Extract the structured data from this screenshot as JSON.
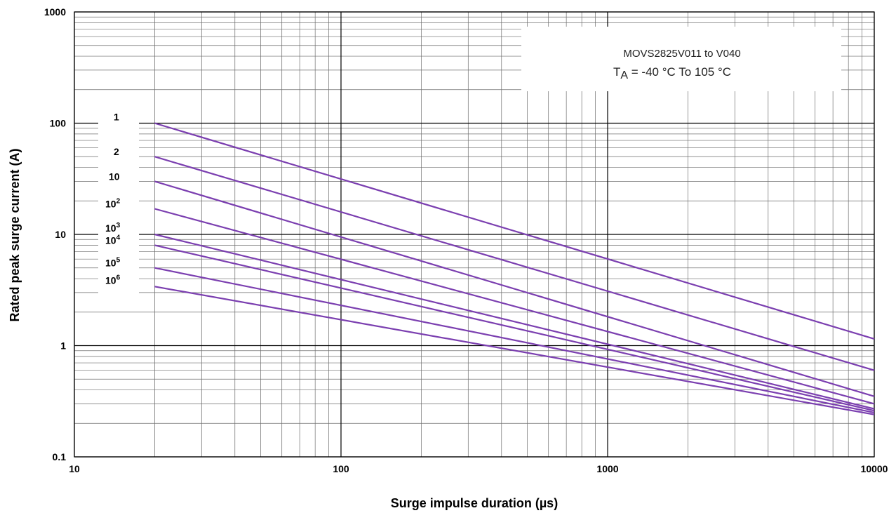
{
  "chart_data": {
    "type": "line",
    "xlabel": "Surge impulse duration (µs)",
    "ylabel": "Rated peak surge current (A)",
    "x_scale": "log",
    "y_scale": "log",
    "xlim": [
      10,
      10000
    ],
    "ylim": [
      0.1,
      1000
    ],
    "grid": true,
    "x_ticks": [
      "10",
      "100",
      "1000",
      "10000"
    ],
    "y_ticks": [
      "0.1",
      "1",
      "10",
      "100",
      "1000"
    ],
    "annotation": {
      "line1": "MOVS2825V011 to V040",
      "line2_prefix": "T",
      "line2_sub": "A",
      "line2_rest": " = -40 °C To 105 °C"
    },
    "line_color": "#7b3fb0",
    "series": [
      {
        "name": "1",
        "label_base": "1",
        "label_exp": "",
        "x": [
          20,
          10000
        ],
        "y": [
          100,
          1.15
        ]
      },
      {
        "name": "2",
        "label_base": "2",
        "label_exp": "",
        "x": [
          20,
          10000
        ],
        "y": [
          50,
          0.6
        ]
      },
      {
        "name": "10",
        "label_base": "10",
        "label_exp": "",
        "x": [
          20,
          10000
        ],
        "y": [
          30,
          0.35
        ]
      },
      {
        "name": "10^2",
        "label_base": "10",
        "label_exp": "2",
        "x": [
          20,
          10000
        ],
        "y": [
          17,
          0.3
        ]
      },
      {
        "name": "10^3",
        "label_base": "10",
        "label_exp": "3",
        "x": [
          20,
          10000
        ],
        "y": [
          10,
          0.27
        ]
      },
      {
        "name": "10^4",
        "label_base": "10",
        "label_exp": "4",
        "x": [
          20,
          10000
        ],
        "y": [
          8,
          0.26
        ]
      },
      {
        "name": "10^5",
        "label_base": "10",
        "label_exp": "5",
        "x": [
          20,
          10000
        ],
        "y": [
          5,
          0.25
        ]
      },
      {
        "name": "10^6",
        "label_base": "10",
        "label_exp": "6",
        "x": [
          20,
          10000
        ],
        "y": [
          3.4,
          0.24
        ]
      }
    ]
  }
}
